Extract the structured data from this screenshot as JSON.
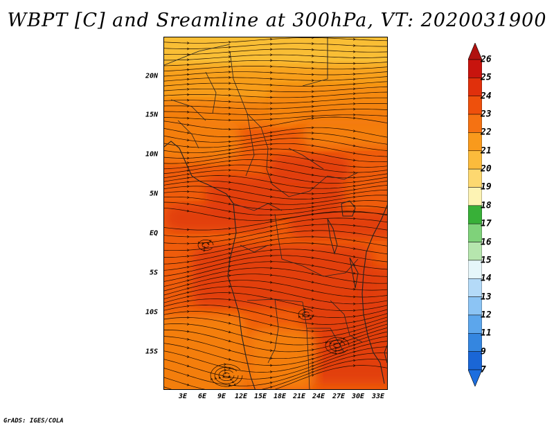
{
  "title": "WBPT [C] and Sreamline at 300hPa, VT: 2020031900",
  "footer": "GrADS: IGES/COLA",
  "map": {
    "variable": "Wet-bulb potential temperature with streamlines",
    "level": "300hPa",
    "lat_labels": [
      "20N",
      "15N",
      "10N",
      "5N",
      "EQ",
      "5S",
      "10S",
      "15S"
    ],
    "lon_labels": [
      "3E",
      "6E",
      "9E",
      "12E",
      "15E",
      "18E",
      "21E",
      "24E",
      "27E",
      "30E",
      "33E"
    ],
    "field_colors": {
      "c20": "#fbd03c",
      "c21": "#f9a91c",
      "c22": "#f5850f",
      "c23": "#ef5c0b",
      "c24": "#e03a0a"
    }
  },
  "colorbar": {
    "labels": [
      "26",
      "25",
      "24",
      "23",
      "22",
      "21",
      "20",
      "19",
      "18",
      "17",
      "16",
      "15",
      "14",
      "13",
      "12",
      "11",
      "9",
      "7"
    ],
    "colors": [
      "#c8140e",
      "#e0300c",
      "#ee500c",
      "#f57212",
      "#f99a1c",
      "#fbbb3c",
      "#fdd870",
      "#fdf3b4",
      "#38b038",
      "#7fd27a",
      "#b6e6ae",
      "#e6f6fa",
      "#b4daf8",
      "#8cc4f4",
      "#5ca6ec",
      "#3486e0",
      "#1a66d6"
    ],
    "top_arrow_color": "#b01210",
    "bottom_arrow_color": "#1c6ede"
  }
}
